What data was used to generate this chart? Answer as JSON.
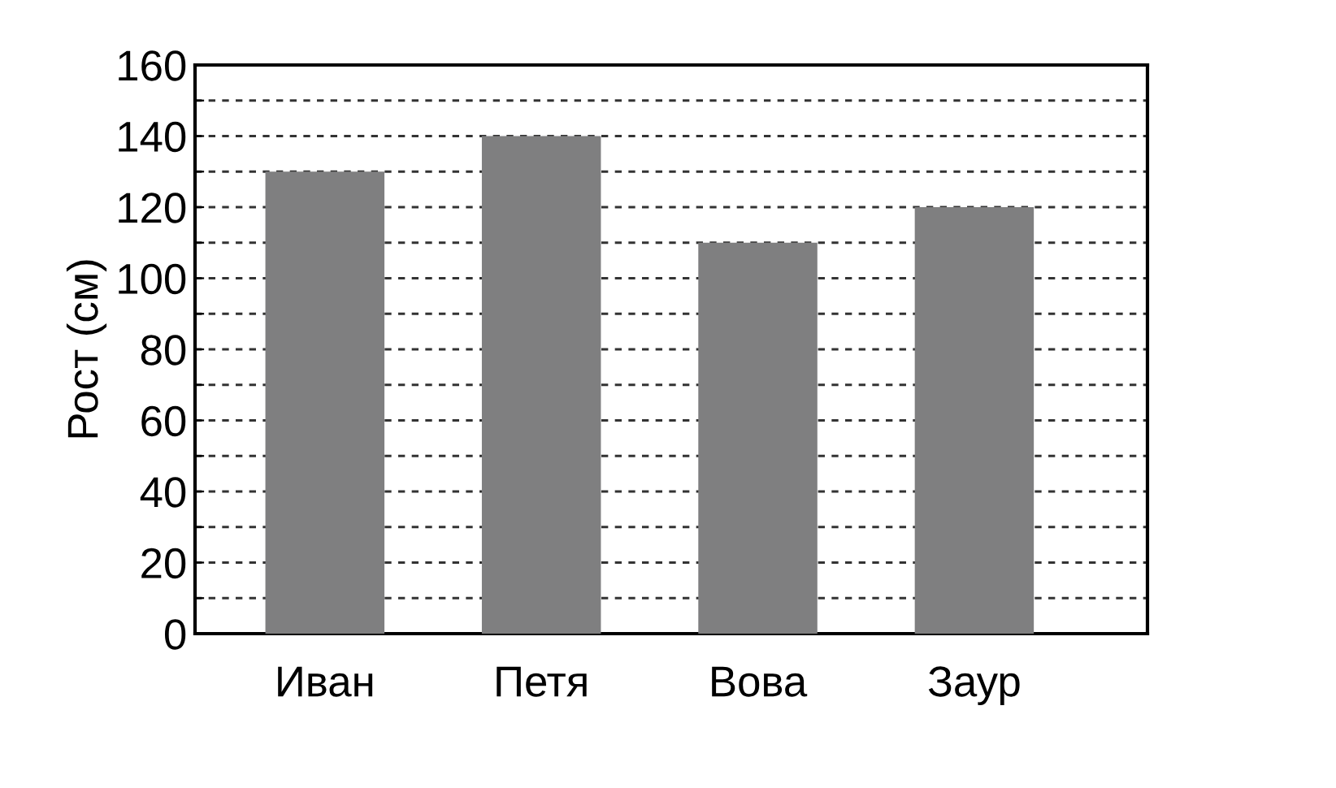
{
  "chart_data": {
    "type": "bar",
    "ylabel": "Рост (см)",
    "categories": [
      "Иван",
      "Петя",
      "Вова",
      "Заур"
    ],
    "values": [
      130,
      140,
      110,
      120
    ],
    "color": "#7f7f80",
    "ylim": [
      0,
      160
    ],
    "yticks": [
      0,
      {
        "value": 10,
        "label": null
      },
      20,
      {
        "value": 30,
        "label": null
      },
      40,
      {
        "value": 50,
        "label": null
      },
      60,
      {
        "value": 70,
        "label": null
      },
      80,
      {
        "value": 90,
        "label": null
      },
      100,
      {
        "value": 110,
        "label": null
      },
      120,
      {
        "value": 130,
        "label": null
      },
      140,
      {
        "value": 150,
        "label": null
      },
      160
    ],
    "grid": "y"
  }
}
